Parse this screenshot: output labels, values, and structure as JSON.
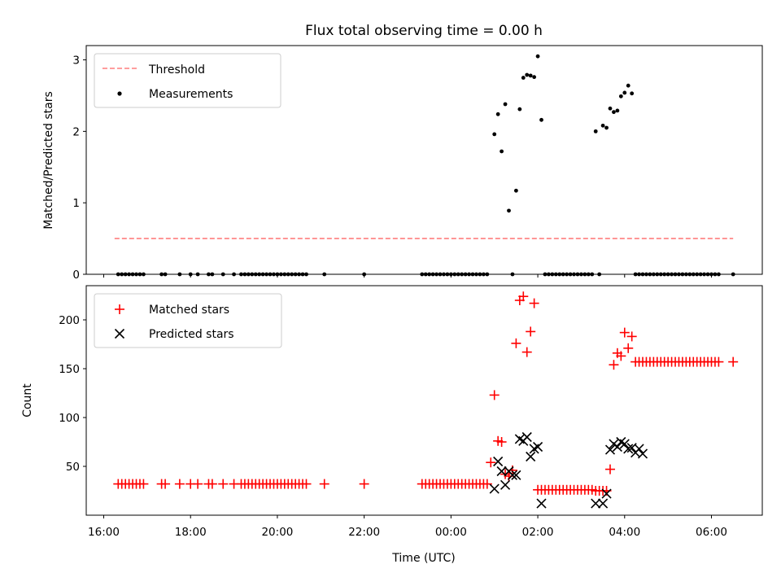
{
  "chart_data": [
    {
      "type": "scatter",
      "title": "Flux total observing time = 0.00 h",
      "xlabel": "",
      "ylabel": "Matched/Predicted stars",
      "ylim": [
        0,
        3.2
      ],
      "yticks": [
        0,
        1,
        2,
        3
      ],
      "legend_position": "upper-left",
      "legend": [
        "Threshold",
        "Measurements"
      ],
      "threshold": {
        "name": "Threshold",
        "value": 0.5,
        "x_start": "16:15",
        "x_end": "06:30",
        "color": "#ff7f7f",
        "style": "dashed"
      },
      "series": [
        {
          "name": "Measurements",
          "color": "#000000",
          "x": [
            "16:20",
            "16:25",
            "16:30",
            "16:35",
            "16:40",
            "16:45",
            "16:50",
            "16:55",
            "17:20",
            "17:25",
            "17:45",
            "18:00",
            "18:10",
            "18:25",
            "18:30",
            "18:45",
            "19:00",
            "19:10",
            "19:15",
            "19:20",
            "19:25",
            "19:30",
            "19:35",
            "19:40",
            "19:45",
            "19:50",
            "19:55",
            "20:00",
            "20:05",
            "20:10",
            "20:15",
            "20:20",
            "20:25",
            "20:30",
            "20:35",
            "20:40",
            "21:05",
            "22:00",
            "23:20",
            "23:25",
            "23:30",
            "23:35",
            "23:40",
            "23:45",
            "23:50",
            "23:55",
            "00:00",
            "00:05",
            "00:10",
            "00:15",
            "00:20",
            "00:25",
            "00:30",
            "00:35",
            "00:40",
            "00:45",
            "00:50",
            "01:00",
            "01:05",
            "01:10",
            "01:15",
            "01:20",
            "01:25",
            "01:30",
            "01:35",
            "01:40",
            "01:45",
            "01:50",
            "01:55",
            "02:00",
            "02:05",
            "02:10",
            "02:15",
            "02:20",
            "02:25",
            "02:30",
            "02:35",
            "02:40",
            "02:45",
            "02:50",
            "02:55",
            "03:00",
            "03:05",
            "03:10",
            "03:15",
            "03:20",
            "03:25",
            "03:30",
            "03:35",
            "03:40",
            "03:45",
            "03:50",
            "03:55",
            "04:00",
            "04:05",
            "04:10",
            "04:15",
            "04:20",
            "04:25",
            "04:30",
            "04:35",
            "04:40",
            "04:45",
            "04:50",
            "04:55",
            "05:00",
            "05:05",
            "05:10",
            "05:15",
            "05:20",
            "05:25",
            "05:30",
            "05:35",
            "05:40",
            "05:45",
            "05:50",
            "05:55",
            "06:00",
            "06:05",
            "06:10",
            "06:30"
          ],
          "y": [
            0,
            0,
            0,
            0,
            0,
            0,
            0,
            0,
            0,
            0,
            0,
            0,
            0,
            0,
            0,
            0,
            0,
            0,
            0,
            0,
            0,
            0,
            0,
            0,
            0,
            0,
            0,
            0,
            0,
            0,
            0,
            0,
            0,
            0,
            0,
            0,
            0,
            0,
            0,
            0,
            0,
            0,
            0,
            0,
            0,
            0,
            0,
            0,
            0,
            0,
            0,
            0,
            0,
            0,
            0,
            0,
            0,
            1.96,
            2.24,
            1.72,
            2.38,
            0.89,
            0,
            1.17,
            2.31,
            2.75,
            2.79,
            2.78,
            2.76,
            3.05,
            2.16,
            0,
            0,
            0,
            0,
            0,
            0,
            0,
            0,
            0,
            0,
            0,
            0,
            0,
            0,
            2.0,
            0,
            2.08,
            2.05,
            2.32,
            2.27,
            2.29,
            2.49,
            2.54,
            2.64,
            2.53,
            0,
            0,
            0,
            0,
            0,
            0,
            0,
            0,
            0,
            0,
            0,
            0,
            0,
            0,
            0,
            0,
            0,
            0,
            0,
            0,
            0,
            0,
            0,
            0,
            0
          ]
        }
      ]
    },
    {
      "type": "scatter",
      "title": "",
      "xlabel": "Time (UTC)",
      "ylabel": "Count",
      "ylim": [
        0,
        235
      ],
      "yticks": [
        50,
        100,
        150,
        200
      ],
      "xticks": [
        "16:00",
        "18:00",
        "20:00",
        "22:00",
        "00:00",
        "02:00",
        "04:00",
        "06:00"
      ],
      "legend_position": "upper-left",
      "legend": [
        "Matched stars",
        "Predicted stars"
      ],
      "series": [
        {
          "name": "Matched stars",
          "marker": "plus",
          "color": "#ff0000",
          "x": [
            "16:20",
            "16:25",
            "16:30",
            "16:35",
            "16:40",
            "16:45",
            "16:50",
            "16:55",
            "17:20",
            "17:25",
            "17:45",
            "18:00",
            "18:10",
            "18:25",
            "18:30",
            "18:45",
            "19:00",
            "19:10",
            "19:15",
            "19:20",
            "19:25",
            "19:30",
            "19:35",
            "19:40",
            "19:45",
            "19:50",
            "19:55",
            "20:00",
            "20:05",
            "20:10",
            "20:15",
            "20:20",
            "20:25",
            "20:30",
            "20:35",
            "20:40",
            "21:05",
            "22:00",
            "23:20",
            "23:25",
            "23:30",
            "23:35",
            "23:40",
            "23:45",
            "23:50",
            "23:55",
            "00:00",
            "00:05",
            "00:10",
            "00:15",
            "00:20",
            "00:25",
            "00:30",
            "00:35",
            "00:40",
            "00:45",
            "00:50",
            "00:55",
            "01:00",
            "01:05",
            "01:10",
            "01:15",
            "01:20",
            "01:25",
            "01:30",
            "01:35",
            "01:40",
            "01:45",
            "01:50",
            "01:55",
            "02:00",
            "02:05",
            "02:10",
            "02:15",
            "02:20",
            "02:25",
            "02:30",
            "02:35",
            "02:40",
            "02:45",
            "02:50",
            "02:55",
            "03:00",
            "03:05",
            "03:10",
            "03:15",
            "03:20",
            "03:25",
            "03:30",
            "03:35",
            "03:40",
            "03:45",
            "03:50",
            "03:55",
            "04:00",
            "04:05",
            "04:10",
            "04:15",
            "04:20",
            "04:25",
            "04:30",
            "04:35",
            "04:40",
            "04:45",
            "04:50",
            "04:55",
            "05:00",
            "05:05",
            "05:10",
            "05:15",
            "05:20",
            "05:25",
            "05:30",
            "05:35",
            "05:40",
            "05:45",
            "05:50",
            "05:55",
            "06:00",
            "06:05",
            "06:10",
            "06:30"
          ],
          "y": [
            32,
            32,
            32,
            32,
            32,
            32,
            32,
            32,
            32,
            32,
            32,
            32,
            32,
            32,
            32,
            32,
            32,
            32,
            32,
            32,
            32,
            32,
            32,
            32,
            32,
            32,
            32,
            32,
            32,
            32,
            32,
            32,
            32,
            32,
            32,
            32,
            32,
            32,
            32,
            32,
            32,
            32,
            32,
            32,
            32,
            32,
            32,
            32,
            32,
            32,
            32,
            32,
            32,
            32,
            32,
            32,
            32,
            54,
            123,
            76,
            75,
            42,
            40,
            46,
            176,
            220,
            224,
            167,
            188,
            217,
            26,
            26,
            26,
            26,
            26,
            26,
            26,
            26,
            26,
            26,
            26,
            26,
            26,
            26,
            26,
            26,
            25,
            25,
            25,
            25,
            47,
            154,
            166,
            163,
            187,
            171,
            183,
            157,
            157,
            157,
            157,
            157,
            157,
            157,
            157,
            157,
            157,
            157,
            157,
            157,
            157,
            157,
            157,
            157,
            157,
            157,
            157,
            157,
            157,
            157,
            157,
            157
          ]
        },
        {
          "name": "Predicted stars",
          "marker": "x",
          "color": "#000000",
          "x": [
            "01:00",
            "01:05",
            "01:10",
            "01:15",
            "01:20",
            "01:25",
            "01:30",
            "01:35",
            "01:40",
            "01:45",
            "01:50",
            "01:55",
            "02:00",
            "02:05",
            "03:20",
            "03:30",
            "03:35",
            "03:40",
            "03:45",
            "03:50",
            "03:55",
            "04:00",
            "04:05",
            "04:10",
            "04:15",
            "04:20",
            "04:25"
          ],
          "y": [
            27,
            55,
            45,
            31,
            45,
            41,
            41,
            78,
            76,
            80,
            60,
            68,
            70,
            12,
            12,
            12,
            22,
            67,
            73,
            70,
            75,
            73,
            68,
            69,
            64,
            68,
            63
          ]
        }
      ]
    }
  ]
}
